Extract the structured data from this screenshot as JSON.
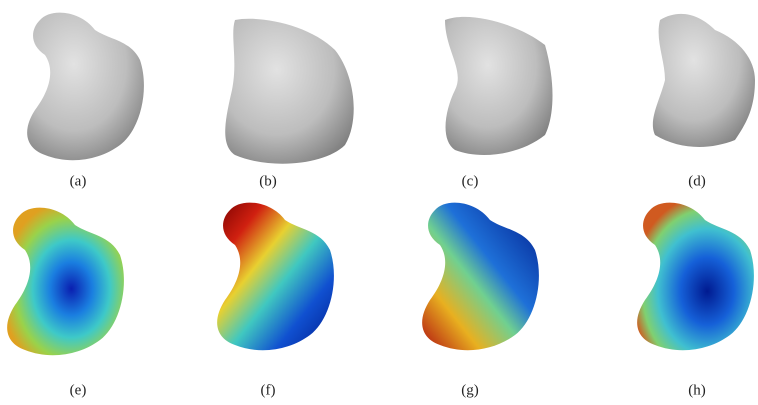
{
  "panels": {
    "labels": [
      "(a)",
      "(b)",
      "(c)",
      "(d)",
      "(e)",
      "(f)",
      "(g)",
      "(h)"
    ]
  }
}
